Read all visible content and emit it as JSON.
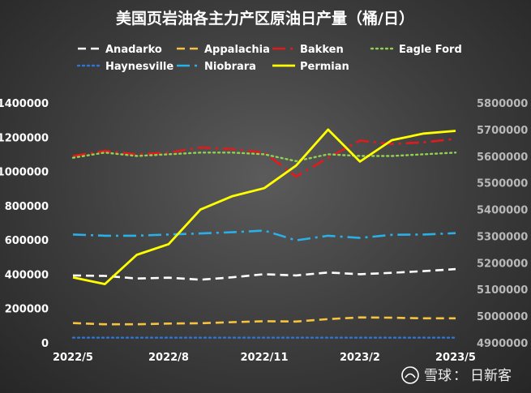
{
  "chart_data": {
    "type": "line",
    "title": "美国页岩油各主力产区原油日产量（桶/日）",
    "x": [
      "2022/5",
      "2022/6",
      "2022/7",
      "2022/8",
      "2022/9",
      "2022/10",
      "2022/11",
      "2022/12",
      "2023/1",
      "2023/2",
      "2023/3",
      "2023/4",
      "2023/5"
    ],
    "x_tick_labels": [
      "2022/5",
      "2022/8",
      "2022/11",
      "2023/2",
      "2023/5"
    ],
    "y_left": {
      "range": [
        0,
        1400000
      ],
      "ticks": [
        "0",
        "200000",
        "400000",
        "600000",
        "800000",
        "1000000",
        "1200000",
        "1400000"
      ]
    },
    "y_right": {
      "range": [
        4900000,
        5800000
      ],
      "ticks": [
        "4900000",
        "5000000",
        "5100000",
        "5200000",
        "5300000",
        "5400000",
        "5500000",
        "5600000",
        "5700000",
        "5800000"
      ]
    },
    "grid": false,
    "legend_position": "top",
    "series": [
      {
        "name": "Anadarko",
        "axis": "left",
        "color": "#ffffff",
        "style": "dashed",
        "values": [
          393000,
          390000,
          375000,
          380000,
          368000,
          382000,
          400000,
          393000,
          410000,
          400000,
          408000,
          418000,
          430000
        ]
      },
      {
        "name": "Appalachia",
        "axis": "left",
        "color": "#f5c242",
        "style": "dashed",
        "values": [
          115000,
          108000,
          108000,
          112000,
          114000,
          120000,
          126000,
          124000,
          138000,
          148000,
          146000,
          143000,
          143000
        ]
      },
      {
        "name": "Bakken",
        "axis": "left",
        "color": "#e31a1c",
        "style": "dash-dot",
        "values": [
          1090000,
          1120000,
          1100000,
          1110000,
          1140000,
          1130000,
          1110000,
          970000,
          1080000,
          1180000,
          1160000,
          1170000,
          1190000
        ]
      },
      {
        "name": "Eagle Ford",
        "axis": "left",
        "color": "#92d050",
        "style": "dotted",
        "values": [
          1080000,
          1110000,
          1090000,
          1100000,
          1110000,
          1110000,
          1100000,
          1060000,
          1100000,
          1090000,
          1090000,
          1100000,
          1110000
        ]
      },
      {
        "name": "Haynesville",
        "axis": "left",
        "color": "#2e75d6",
        "style": "dotted",
        "values": [
          30000,
          30000,
          30000,
          30000,
          30000,
          30000,
          30000,
          30000,
          30000,
          30000,
          30000,
          30000,
          30000
        ]
      },
      {
        "name": "Niobrara",
        "axis": "left",
        "color": "#2ab0e8",
        "style": "dash-dot",
        "values": [
          632000,
          625000,
          625000,
          632000,
          638000,
          645000,
          655000,
          598000,
          625000,
          612000,
          630000,
          632000,
          640000
        ]
      },
      {
        "name": "Permian",
        "axis": "right",
        "color": "#ffff00",
        "style": "solid",
        "values": [
          5145000,
          5120000,
          5230000,
          5270000,
          5400000,
          5450000,
          5480000,
          5565000,
          5700000,
          5580000,
          5660000,
          5685000,
          5695000
        ]
      }
    ]
  },
  "watermark": {
    "site": "雪球",
    "separator": "：",
    "author": "日新客"
  }
}
